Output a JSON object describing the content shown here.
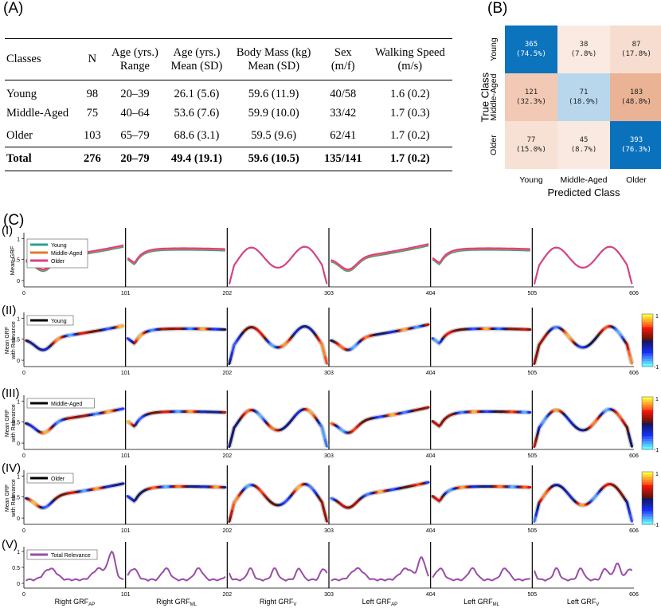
{
  "panels": {
    "a": "(A)",
    "b": "(B)",
    "c": "(C)"
  },
  "table": {
    "headers": [
      [
        "Classes"
      ],
      [
        "N"
      ],
      [
        "Age (yrs.)",
        "Range"
      ],
      [
        "Age (yrs.)",
        "Mean (SD)"
      ],
      [
        "Body Mass (kg)",
        "Mean (SD)"
      ],
      [
        "Sex",
        "(m/f)"
      ],
      [
        "Walking Speed",
        "(m/s)"
      ]
    ],
    "rows": [
      [
        "Young",
        "98",
        "20–39",
        "26.1 (5.6)",
        "59.6 (11.9)",
        "40/58",
        "1.6 (0.2)"
      ],
      [
        "Middle-Aged",
        "75",
        "40–64",
        "53.6 (7.6)",
        "59.9 (10.0)",
        "33/42",
        "1.7 (0.3)"
      ],
      [
        "Older",
        "103",
        "65–79",
        "68.6 (3.1)",
        "59.5 (9.6)",
        "62/41",
        "1.7 (0.2)"
      ]
    ],
    "total": [
      "Total",
      "276",
      "20–79",
      "49.4 (19.1)",
      "59.6 (10.5)",
      "135/141",
      "1.7 (0.2)"
    ]
  },
  "chart_data": [
    {
      "type": "heatmap",
      "ylabel": "True Class",
      "xlabel": "Predicted Class",
      "categories": [
        "Young",
        "Middle-Aged",
        "Older"
      ],
      "values": [
        [
          365,
          38,
          87
        ],
        [
          121,
          71,
          183
        ],
        [
          77,
          45,
          393
        ]
      ],
      "percent_labels": [
        [
          "(74.5%)",
          "(7.8%)",
          "(17.8%)"
        ],
        [
          "(32.3%)",
          "(18.9%)",
          "(48.8%)"
        ],
        [
          "(15.0%)",
          "(8.7%)",
          "(76.3%)"
        ]
      ],
      "colors": {
        "diag_high": "#0a72bd",
        "diag_low": "#c4def0",
        "off_low": "#fbeee7",
        "off_high": "#eab193"
      }
    },
    {
      "type": "line",
      "panel_labels": [
        "(I)",
        "(II)",
        "(III)",
        "(IV)",
        "(V)"
      ],
      "ylabel_1": "Mean GRF",
      "ylabel_2": [
        "Mean GRF",
        "with Relevance"
      ],
      "x_ticks": [
        "0",
        "101",
        "202",
        "303",
        "404",
        "505",
        "606"
      ],
      "y_ticks_grf": [
        "1",
        "0.5",
        "0"
      ],
      "y_ticks_rel": [
        "1",
        "0.5",
        "0"
      ],
      "xlim": [
        0,
        606
      ],
      "segment_labels": [
        "Right GRF",
        "Right GRF",
        "Right GRF",
        "Left GRF",
        "Left GRF",
        "Left GRF"
      ],
      "segment_subs": [
        "AP",
        "ML",
        "V",
        "AP",
        "ML",
        "V"
      ],
      "colorbar_ticks": [
        "1",
        "-1"
      ],
      "legends": {
        "I": [
          {
            "name": "Young",
            "color": "#2f9e8f"
          },
          {
            "name": "Middle-Aged",
            "color": "#e07b2a"
          },
          {
            "name": "Older",
            "color": "#d93f8e"
          }
        ],
        "II": "Young",
        "III": "Middle-Aged",
        "IV": "Older",
        "V": "Total Relevance"
      },
      "total_relevance_color": "#9a4ca8"
    }
  ]
}
